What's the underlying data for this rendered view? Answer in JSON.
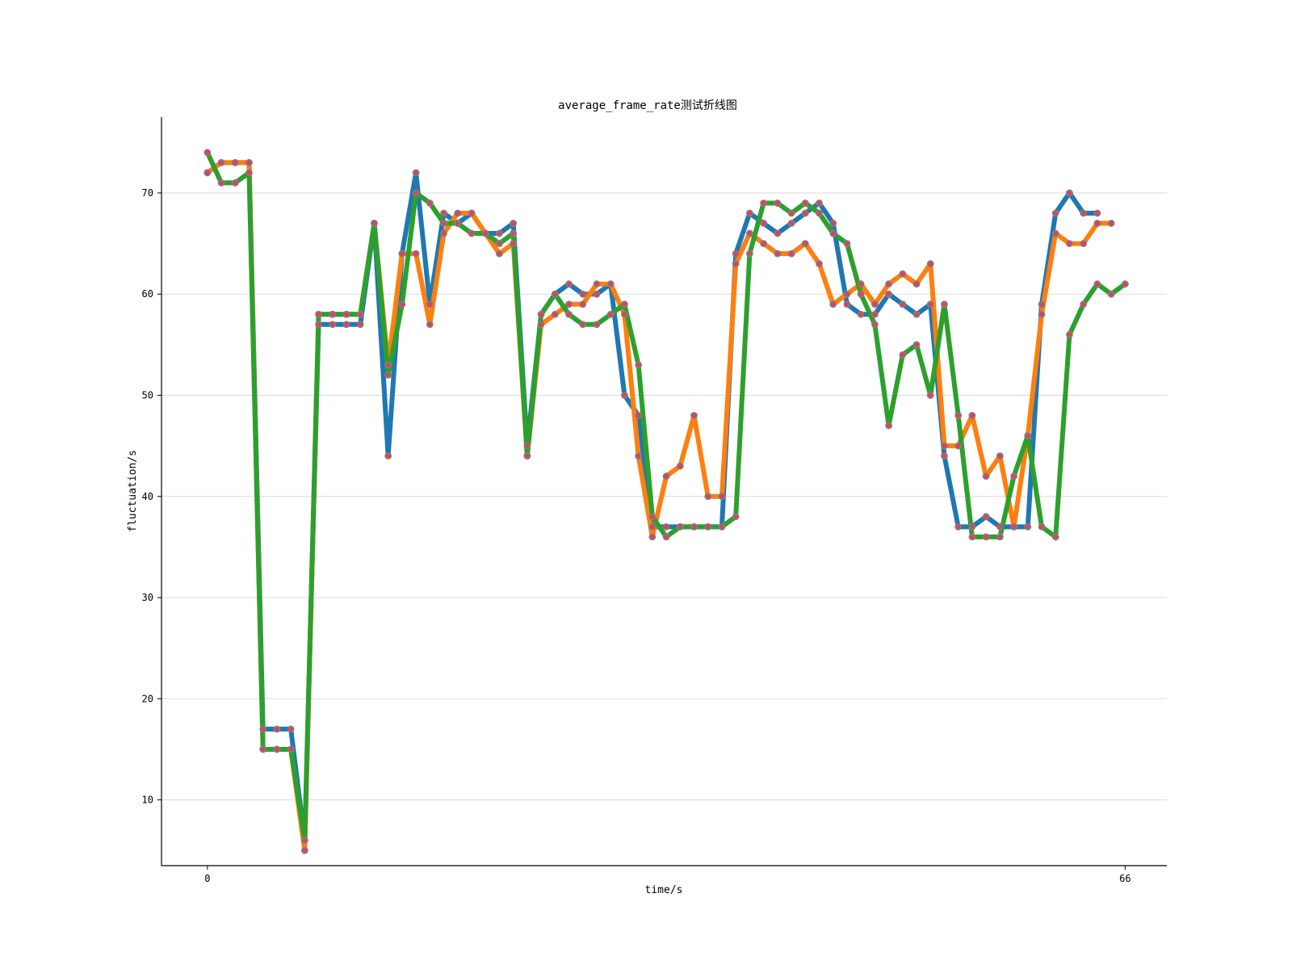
{
  "chart_data": {
    "type": "line",
    "title": "average_frame_rate测试折线图",
    "xlabel": "time/s",
    "ylabel": "fluctuation/s",
    "xlim": [
      -3.3,
      69
    ],
    "ylim": [
      3.5,
      77.5
    ],
    "xticks": [
      0,
      66
    ],
    "yticks": [
      10,
      20,
      30,
      40,
      50,
      60,
      70
    ],
    "grid": "horizontal",
    "marker_color": "#e0405a",
    "marker_edge": "#808080",
    "series": [
      {
        "color": "#1f77b4",
        "values": [
          72,
          73,
          73,
          73,
          17,
          17,
          17,
          6,
          57,
          57,
          57,
          57,
          67,
          44,
          64,
          72,
          59,
          68,
          67,
          68,
          66,
          66,
          67,
          45,
          58,
          60,
          61,
          60,
          60,
          61,
          50,
          48,
          37,
          37,
          37,
          37,
          37,
          37,
          64,
          68,
          67,
          66,
          67,
          68,
          69,
          67,
          59,
          58,
          58,
          60,
          59,
          58,
          59,
          44,
          37,
          37,
          38,
          37,
          37,
          37,
          59,
          68,
          70,
          68,
          68
        ]
      },
      {
        "color": "#ff7f0e",
        "values": [
          72,
          73,
          73,
          73,
          15,
          15,
          15,
          5,
          58,
          58,
          58,
          58,
          67,
          53,
          64,
          64,
          57,
          66,
          68,
          68,
          66,
          64,
          65,
          44,
          57,
          58,
          59,
          59,
          61,
          61,
          58,
          44,
          36,
          42,
          43,
          48,
          40,
          40,
          63,
          66,
          65,
          64,
          64,
          65,
          63,
          59,
          60,
          61,
          59,
          61,
          62,
          61,
          63,
          45,
          45,
          48,
          42,
          44,
          37,
          46,
          58,
          66,
          65,
          65,
          67,
          67
        ]
      },
      {
        "color": "#2ca02c",
        "values": [
          74,
          71,
          71,
          72,
          15,
          15,
          15,
          6,
          58,
          58,
          58,
          58,
          67,
          52,
          59,
          70,
          69,
          67,
          67,
          66,
          66,
          65,
          66,
          44,
          58,
          60,
          58,
          57,
          57,
          58,
          59,
          53,
          38,
          36,
          37,
          37,
          37,
          37,
          38,
          64,
          69,
          69,
          68,
          69,
          68,
          66,
          65,
          60,
          57,
          47,
          54,
          55,
          50,
          59,
          48,
          36,
          36,
          36,
          42,
          46,
          37,
          36,
          56,
          59,
          61,
          60,
          61
        ]
      }
    ]
  }
}
